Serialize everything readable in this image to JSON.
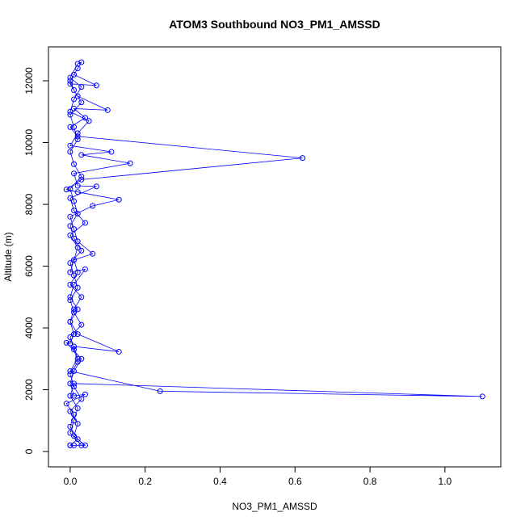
{
  "chart_data": {
    "type": "line",
    "title": "ATOM3 Southbound NO3_PM1_AMSSD",
    "x_label": "NO3_PM1_AMSSD",
    "y_label": "Altitude (m)",
    "color": "#0000ff",
    "marker": "circle",
    "x": [
      0,
      0.01,
      0.03,
      0,
      0.01,
      0.02,
      0,
      0.01,
      1.1,
      0.24,
      0,
      0.02,
      0.01,
      0.13,
      0.02,
      0,
      0.01,
      0.03,
      0,
      0.02,
      0.01,
      0.06,
      0.02,
      0.01,
      0,
      0.06,
      0.13,
      0.02,
      -0.01,
      0.03,
      0.62,
      0.02,
      0,
      0.04,
      0.01,
      0.1,
      0.02,
      0,
      0.07,
      0.01,
      0.03,
      0.02,
      0,
      0.03,
      0.01,
      0,
      0.05,
      0.02,
      0,
      0.11,
      0.03,
      0.16,
      0.01,
      0.02,
      0.07,
      0,
      0.01,
      0.04,
      0,
      0.02,
      0.01,
      0,
      0.04,
      0.01,
      0,
      0.02,
      0,
      0.01,
      0,
      -0.01,
      0.03,
      0.01,
      0,
      0.01,
      0.04,
      -0.01,
      0.01,
      0,
      0.02,
      0,
      0.04,
      0.01,
      0.02,
      0,
      0.03,
      0.01,
      0,
      0.02,
      0.01,
      0,
      0.03,
      0.01,
      0,
      0.02,
      0.01,
      0,
      0.03,
      0.01,
      0,
      0.02,
      0.01,
      0,
      0.03,
      0.01,
      0,
      0.02,
      0.01,
      0,
      0.03,
      0.01,
      0,
      0.02
    ],
    "values": [
      200,
      200,
      200,
      600,
      1000,
      1400,
      1800,
      2200,
      1780,
      1950,
      2600,
      3000,
      3400,
      3230,
      3800,
      4200,
      4600,
      5000,
      5400,
      5800,
      6200,
      6400,
      6800,
      7200,
      7600,
      7950,
      8150,
      8400,
      8480,
      8800,
      9500,
      10200,
      10500,
      10800,
      11100,
      11050,
      11500,
      11900,
      11850,
      12200,
      12600,
      12550,
      12100,
      11800,
      11400,
      11000,
      10700,
      10300,
      9900,
      9700,
      9600,
      9330,
      9000,
      8600,
      8580,
      8200,
      7800,
      7400,
      7000,
      6600,
      6200,
      5800,
      5900,
      5400,
      5000,
      4600,
      4200,
      3800,
      3500,
      3520,
      3000,
      2600,
      2200,
      1800,
      1850,
      1550,
      1200,
      800,
      400,
      200,
      200,
      500,
      900,
      1300,
      1700,
      2100,
      2500,
      2900,
      3300,
      3700,
      4100,
      4500,
      4900,
      5300,
      5700,
      6100,
      6500,
      6900,
      7300,
      7700,
      8100,
      8500,
      8900,
      9300,
      9700,
      10100,
      10500,
      10900,
      11300,
      11700,
      12000,
      12400
    ],
    "xlim": [
      -0.058,
      1.149
    ],
    "ylim": [
      -497,
      13098
    ],
    "xticks": [
      {
        "value": 0,
        "label": "0.0"
      },
      {
        "value": 0.2,
        "label": "0.2"
      },
      {
        "value": 0.4,
        "label": "0.4"
      },
      {
        "value": 0.6,
        "label": "0.6"
      },
      {
        "value": 0.8,
        "label": "0.8"
      },
      {
        "value": 1.0,
        "label": "1.0"
      }
    ],
    "yticks": [
      0,
      2000,
      4000,
      6000,
      8000,
      10000,
      12000
    ]
  }
}
